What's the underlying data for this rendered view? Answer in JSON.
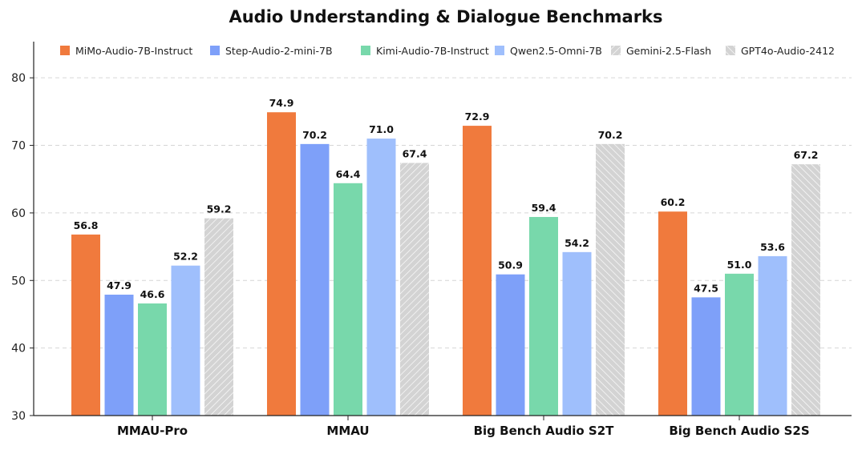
{
  "chart_data": {
    "type": "bar",
    "title": "Audio Understanding & Dialogue Benchmarks",
    "xlabel": "",
    "ylabel": "",
    "ylim": [
      30,
      85
    ],
    "yticks": [
      30,
      40,
      50,
      60,
      70,
      80
    ],
    "grid": "horizontal dashed",
    "legend_position": "top",
    "categories": [
      "MMAU-Pro",
      "MMAU",
      "Big Bench Audio S2T",
      "Big Bench Audio S2S"
    ],
    "series": [
      {
        "name": "MiMo-Audio-7B-Instruct",
        "color": "#f07a3d",
        "pattern": "solid",
        "values": [
          56.8,
          74.9,
          72.9,
          60.2
        ]
      },
      {
        "name": "Step-Audio-2-mini-7B",
        "color": "#7ea0f9",
        "pattern": "solid",
        "values": [
          47.9,
          70.2,
          50.9,
          47.5
        ]
      },
      {
        "name": "Kimi-Audio-7B-Instruct",
        "color": "#78d8ab",
        "pattern": "solid",
        "values": [
          46.6,
          64.4,
          59.4,
          51.0
        ]
      },
      {
        "name": "Qwen2.5-Omni-7B",
        "color": "#9fbffc",
        "pattern": "solid",
        "values": [
          52.2,
          71.0,
          54.2,
          53.6
        ]
      },
      {
        "name": "Gemini-2.5-Flash",
        "color": "#d3d3d3",
        "pattern": "hatch-forward",
        "values": [
          59.2,
          67.4,
          null,
          null
        ]
      },
      {
        "name": "GPT4o-Audio-2412",
        "color": "#d3d3d3",
        "pattern": "hatch-back",
        "values": [
          null,
          null,
          70.2,
          67.2
        ]
      }
    ]
  }
}
